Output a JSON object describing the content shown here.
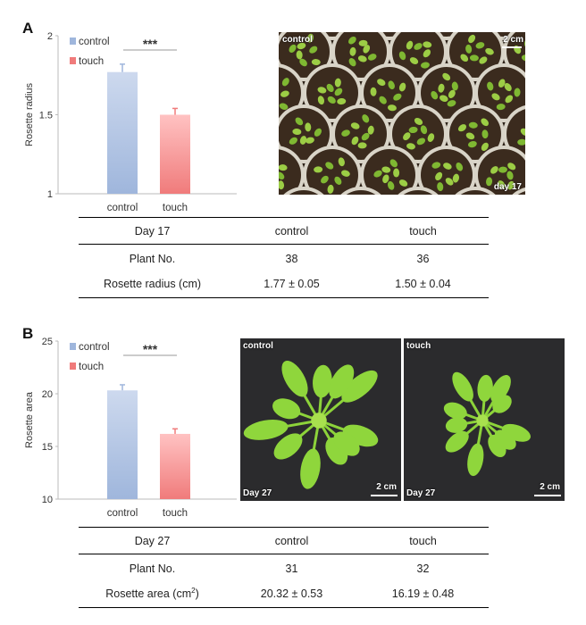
{
  "panel_a": {
    "letter": "A",
    "legend": [
      {
        "label": "control",
        "color": "#9fb6dc"
      },
      {
        "label": "touch",
        "color": "#f07b7b"
      }
    ],
    "significance": "***",
    "photo": {
      "label": "control",
      "scale": "2 cm",
      "day": "day 17"
    },
    "table": {
      "headers": [
        "Day 17",
        "control",
        "touch"
      ],
      "rows": [
        [
          "Plant No.",
          "38",
          "36"
        ],
        [
          "Rosette radius (cm)",
          "1.77 ± 0.05",
          "1.50 ± 0.04"
        ]
      ]
    }
  },
  "panel_b": {
    "letter": "B",
    "legend": [
      {
        "label": "control",
        "color": "#9fb6dc"
      },
      {
        "label": "touch",
        "color": "#f07b7b"
      }
    ],
    "significance": "***",
    "photo_left": {
      "label": "control",
      "scale": "2 cm",
      "day": "Day 27"
    },
    "photo_right": {
      "label": "touch",
      "scale": "2 cm",
      "day": "Day 27"
    },
    "table": {
      "headers": [
        "Day 27",
        "control",
        "touch"
      ],
      "rows": [
        [
          "Plant No.",
          "31",
          "32"
        ],
        [
          "Rosette area (cm",
          "20.32 ± 0.53",
          "16.19 ± 0.48"
        ]
      ],
      "area_unit_sup": "2",
      "area_unit_close": ")"
    }
  },
  "chart_data": [
    {
      "type": "bar",
      "categories": [
        "control",
        "touch"
      ],
      "values": [
        1.77,
        1.5
      ],
      "errors": [
        0.05,
        0.04
      ],
      "colors": [
        "#9fb6dc",
        "#f07b7b"
      ],
      "ylabel": "Rosette radius",
      "ylim": [
        1,
        2
      ],
      "yticks": [
        "1",
        "1.5",
        "2"
      ],
      "ytick_values": [
        1,
        1.5,
        2
      ],
      "legend_labels": [
        "control",
        "touch"
      ],
      "annotation": "***"
    },
    {
      "type": "bar",
      "categories": [
        "control",
        "touch"
      ],
      "values": [
        20.32,
        16.19
      ],
      "errors": [
        0.53,
        0.48
      ],
      "colors": [
        "#9fb6dc",
        "#f07b7b"
      ],
      "ylabel": "Rosette area",
      "ylim": [
        10,
        25
      ],
      "yticks": [
        "10",
        "15",
        "20",
        "25"
      ],
      "ytick_values": [
        10,
        15,
        20,
        25
      ],
      "legend_labels": [
        "control",
        "touch"
      ],
      "annotation": "***"
    }
  ]
}
